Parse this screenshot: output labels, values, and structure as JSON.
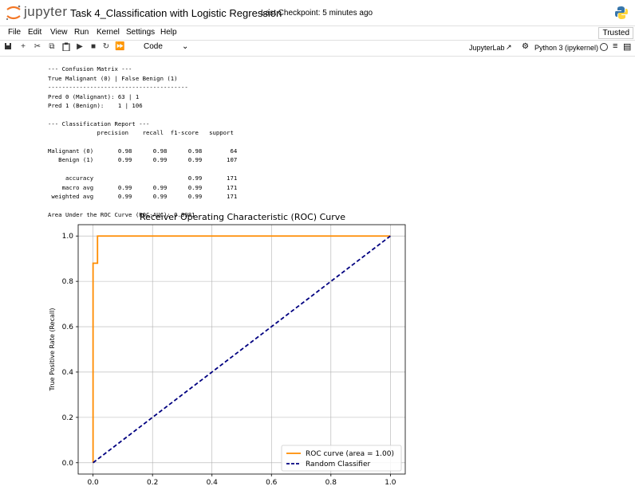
{
  "header": {
    "logo_text": "jupyter",
    "notebook_title": "Task 4_Classification with Logistic Regression",
    "checkpoint": "Last Checkpoint: 5 minutes ago"
  },
  "menu": {
    "items": [
      "File",
      "Edit",
      "View",
      "Run",
      "Kernel",
      "Settings",
      "Help"
    ],
    "trusted": "Trusted"
  },
  "toolbar": {
    "cell_type": "Code",
    "jupyterlab_label": "JupyterLab",
    "kernel_label": "Python 3 (ipykernel)"
  },
  "output": {
    "lines": [
      "--- Confusion Matrix ---",
      "True Malignant (0) | False Benign (1)",
      "----------------------------------------",
      "Pred 0 (Malignant): 63 | 1",
      "Pred 1 (Benign):    1 | 106",
      "",
      "--- Classification Report ---",
      "              precision    recall  f1-score   support",
      "",
      "Malignant (0)       0.98      0.98      0.98        64",
      "   Benign (1)       0.99      0.99      0.99       107",
      "",
      "     accuracy                           0.99       171",
      "    macro avg       0.99      0.99      0.99       171",
      " weighted avg       0.99      0.99      0.99       171",
      "",
      "Area Under the ROC Curve (ROC-AUC): 0.9981"
    ]
  },
  "chart_data": {
    "type": "line",
    "title": "Receiver Operating Characteristic (ROC) Curve",
    "xlabel": "",
    "ylabel": "True Positive Rate (Recall)",
    "xlim": [
      0.0,
      1.0
    ],
    "ylim": [
      0.0,
      1.0
    ],
    "xticks": [
      "0.0",
      "0.2",
      "0.4",
      "0.6",
      "0.8",
      "1.0"
    ],
    "yticks": [
      "0.0",
      "0.2",
      "0.4",
      "0.6",
      "0.8",
      "1.0"
    ],
    "grid": true,
    "legend_position": "bottom-right",
    "series": [
      {
        "name": "ROC curve (area = 1.00)",
        "color": "#ff8c00",
        "style": "solid",
        "x": [
          0.0,
          0.0,
          0.0,
          0.015,
          0.015,
          0.015,
          1.0
        ],
        "y": [
          0.0,
          0.88,
          0.88,
          0.88,
          1.0,
          1.0,
          1.0
        ]
      },
      {
        "name": "Random Classifier",
        "color": "#000080",
        "style": "dashed",
        "x": [
          0.0,
          1.0
        ],
        "y": [
          0.0,
          1.0
        ]
      }
    ]
  }
}
